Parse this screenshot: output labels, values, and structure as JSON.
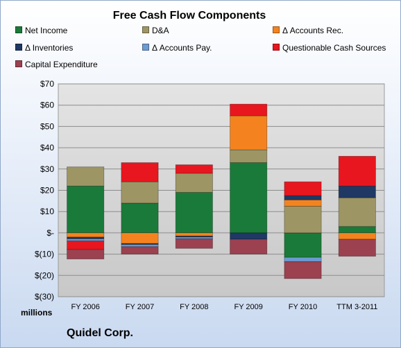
{
  "chart_data": {
    "type": "bar",
    "stacked": true,
    "title": "Free Cash Flow Components",
    "categories": [
      "FY 2006",
      "FY 2007",
      "FY 2008",
      "FY 2009",
      "FY 2010",
      "TTM 3-2011"
    ],
    "ylim": [
      -30,
      70
    ],
    "yticks": [
      -30,
      -20,
      -10,
      0,
      10,
      20,
      30,
      40,
      50,
      60,
      70
    ],
    "ytick_labels": [
      "$(30)",
      "$(20)",
      "$(10)",
      "$-",
      "$10",
      "$20",
      "$30",
      "$40",
      "$50",
      "$60",
      "$70"
    ],
    "unit_label": "millions",
    "grid": true,
    "legend_position": "top",
    "series": [
      {
        "name": "Net Income",
        "color": "#1a7a3a",
        "values": [
          22,
          14,
          19,
          33,
          -11.5,
          3
        ]
      },
      {
        "name": "D&A",
        "color": "#9e9565",
        "values": [
          9,
          10,
          9,
          6,
          12.5,
          13.5
        ]
      },
      {
        "name": "Δ Accounts Rec.",
        "color": "#f4831f",
        "values": [
          -2,
          -5,
          -1.5,
          16,
          3,
          -3
        ]
      },
      {
        "name": "Δ Inventories",
        "color": "#1f3864",
        "values": [
          -0.8,
          -0.5,
          -0.5,
          -3,
          2,
          5.5
        ]
      },
      {
        "name": "Δ Accounts Pay.",
        "color": "#6c9bd2",
        "values": [
          -1,
          -1,
          -0.8,
          0,
          -2,
          0
        ]
      },
      {
        "name": "Questionable Cash Sources",
        "color": "#e8161f",
        "values": [
          -4,
          9,
          4,
          5.5,
          6.5,
          14
        ]
      },
      {
        "name": "Capital Expenditure",
        "color": "#9b4150",
        "values": [
          -4.5,
          -3.5,
          -4.5,
          -7,
          -8,
          -8
        ]
      }
    ]
  },
  "footer": {
    "company": "Quidel Corp."
  }
}
